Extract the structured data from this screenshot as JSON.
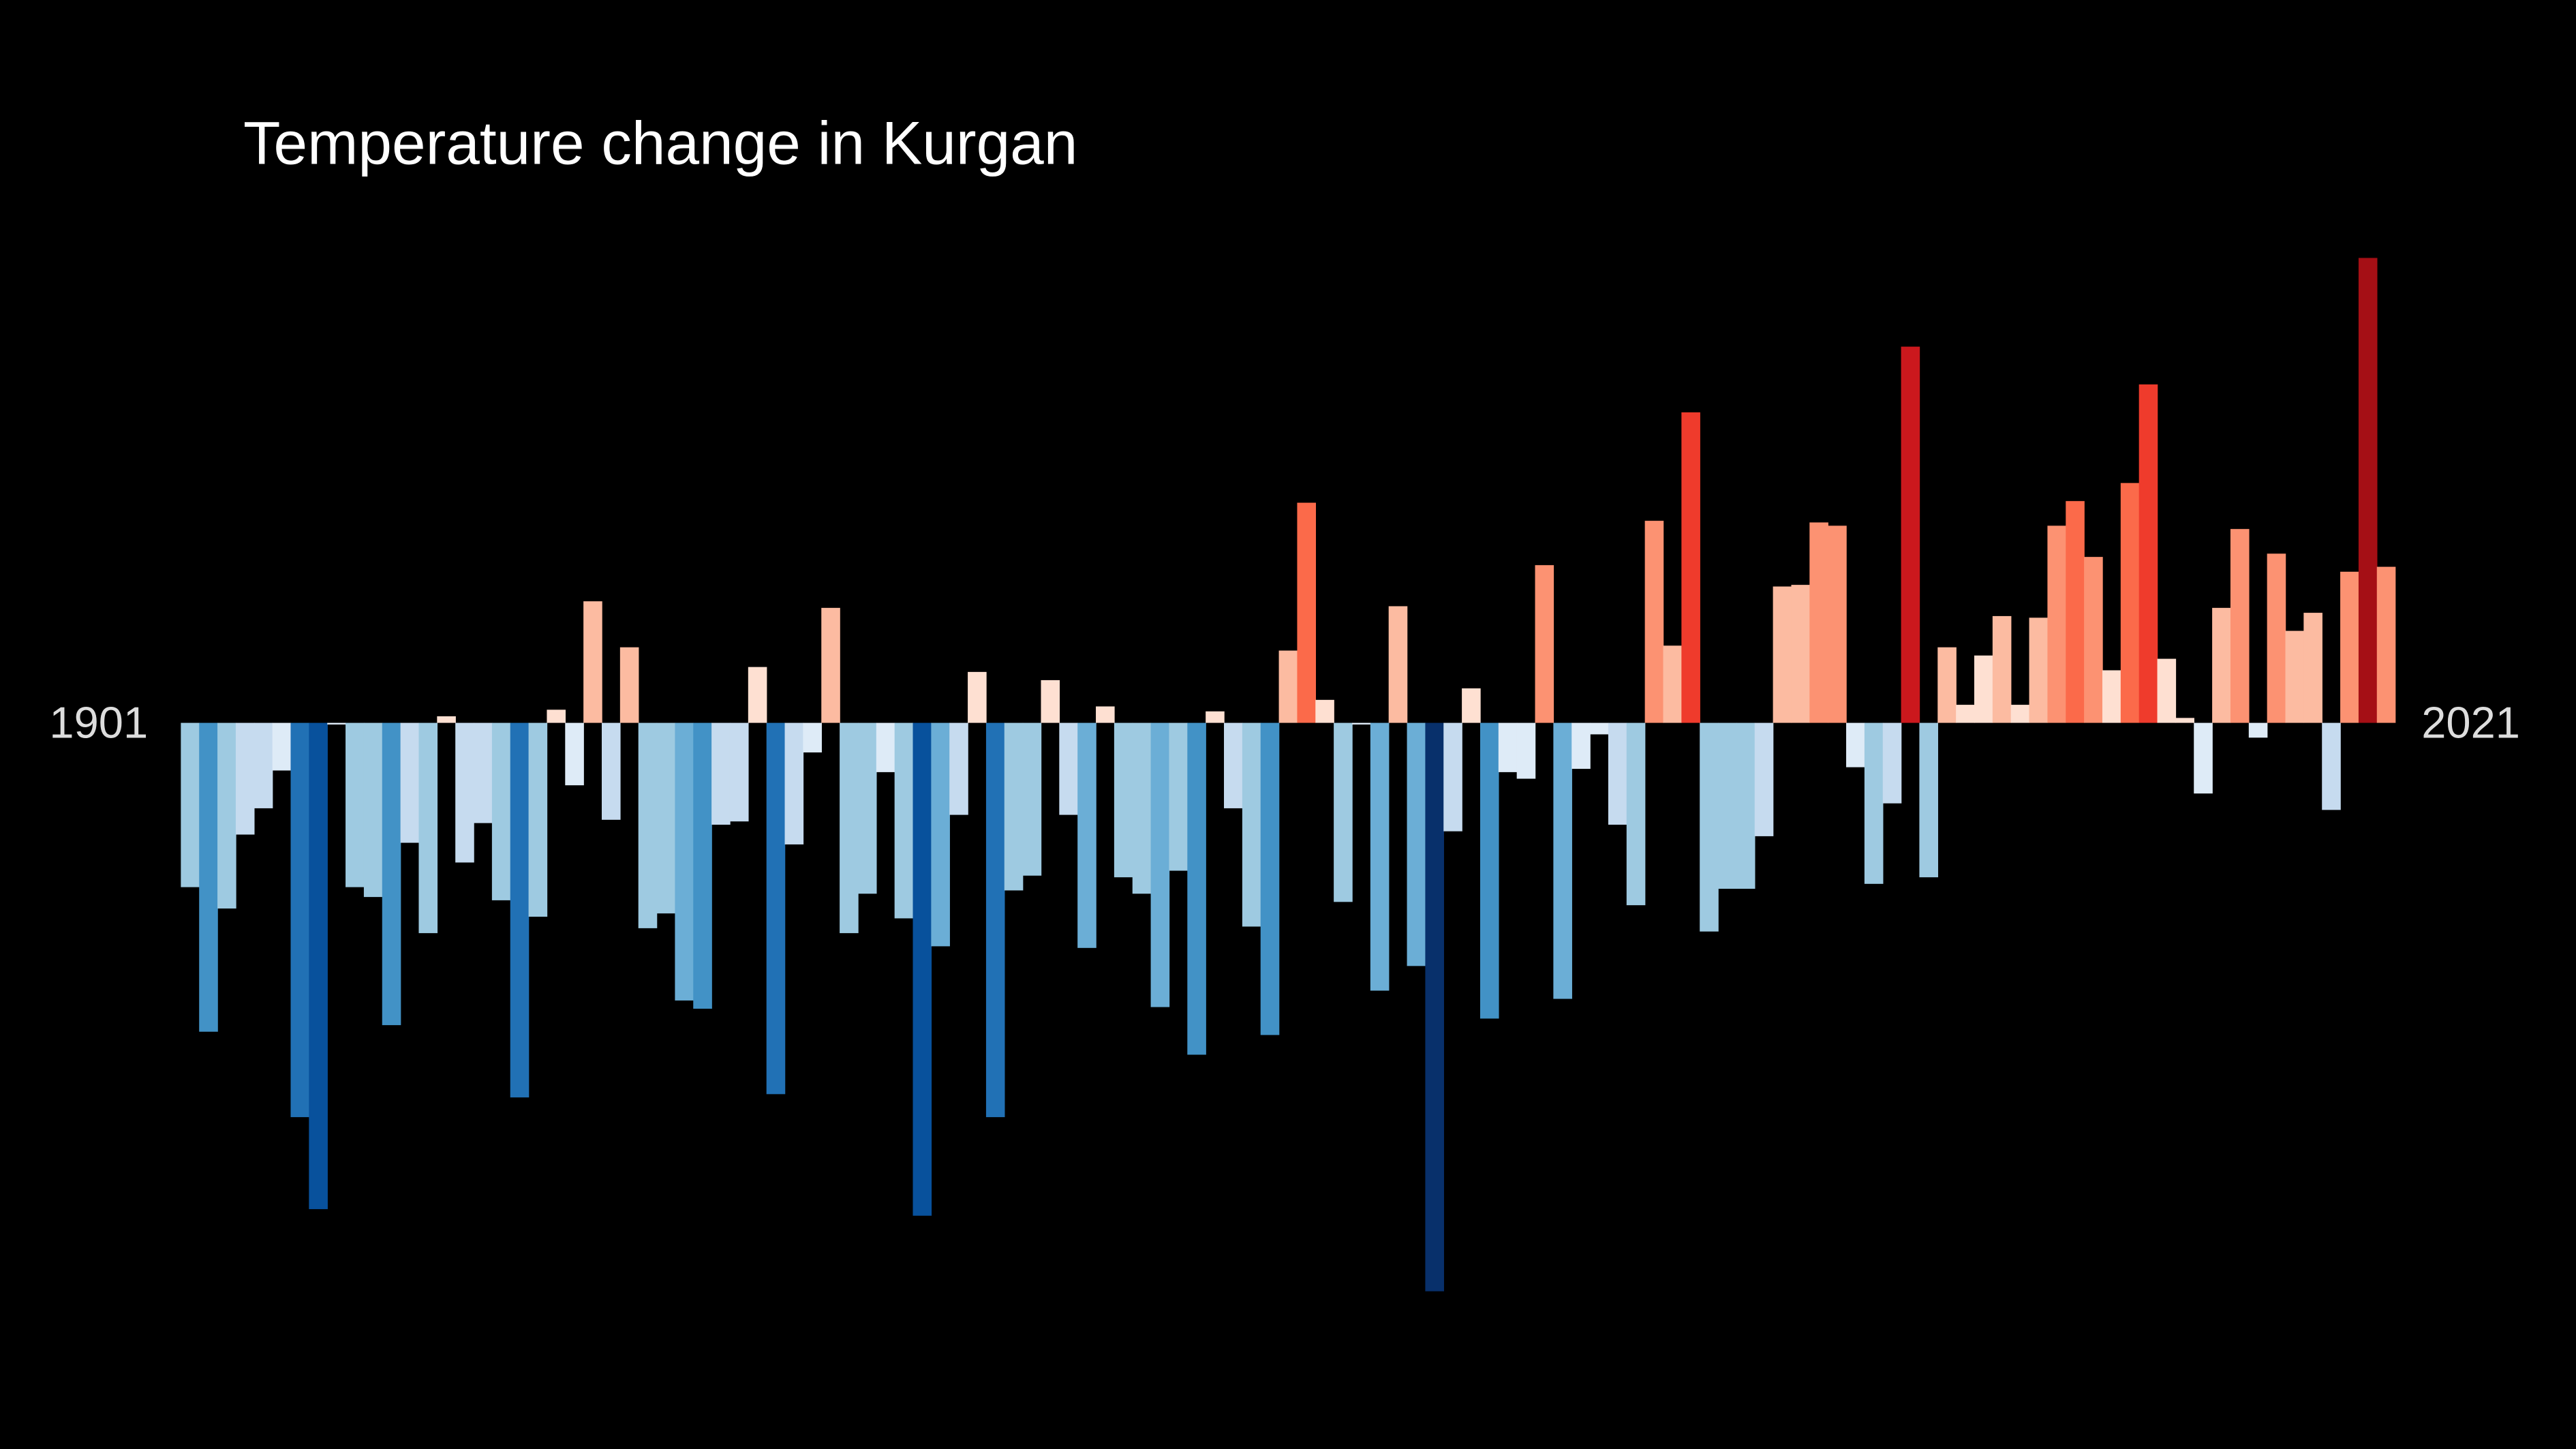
{
  "chart_data": {
    "type": "bar",
    "title": "Temperature change in Kurgan",
    "categories": [
      "1901",
      null,
      null,
      null,
      null,
      null,
      null,
      null,
      null,
      null,
      null,
      null,
      null,
      null,
      null,
      null,
      null,
      null,
      null,
      null,
      null,
      null,
      null,
      null,
      null,
      null,
      null,
      null,
      null,
      null,
      null,
      null,
      null,
      null,
      null,
      null,
      null,
      null,
      null,
      null,
      null,
      null,
      null,
      null,
      null,
      null,
      null,
      null,
      null,
      null,
      null,
      null,
      null,
      null,
      null,
      null,
      null,
      null,
      null,
      null,
      null,
      null,
      null,
      null,
      null,
      null,
      null,
      null,
      null,
      null,
      null,
      null,
      null,
      null,
      null,
      null,
      null,
      null,
      null,
      null,
      null,
      null,
      null,
      null,
      null,
      null,
      null,
      null,
      null,
      null,
      null,
      null,
      null,
      null,
      null,
      null,
      null,
      null,
      null,
      null,
      null,
      null,
      null,
      null,
      null,
      null,
      null,
      null,
      null,
      null,
      null,
      null,
      null,
      null,
      null,
      null,
      null,
      null,
      null,
      null,
      "2021"
    ],
    "values": [
      -1.0,
      -1.88,
      -1.13,
      -0.68,
      -0.52,
      -0.29,
      -2.4,
      -2.96,
      -0.01,
      -1.0,
      -1.06,
      -1.84,
      -0.73,
      -1.28,
      0.04,
      -0.85,
      -0.61,
      -1.08,
      -2.28,
      -1.18,
      0.08,
      -0.38,
      0.74,
      -0.59,
      0.46,
      -1.25,
      -1.16,
      -1.69,
      -1.74,
      -0.62,
      -0.6,
      0.34,
      -2.26,
      -0.74,
      -0.18,
      0.7,
      -1.28,
      -1.04,
      -0.3,
      -1.19,
      -3.0,
      -1.36,
      -0.56,
      0.31,
      -2.4,
      -1.02,
      -0.93,
      0.26,
      -0.56,
      -1.37,
      0.1,
      -0.94,
      -1.04,
      -1.73,
      -0.9,
      -2.02,
      0.07,
      -0.52,
      -1.24,
      -1.9,
      0.44,
      1.34,
      0.14,
      -1.09,
      -0.01,
      -1.63,
      0.71,
      -1.48,
      -3.46,
      -0.66,
      0.21,
      -1.8,
      -0.3,
      -0.34,
      0.96,
      -1.68,
      -0.28,
      -0.07,
      -0.62,
      -1.11,
      1.23,
      0.47,
      1.89,
      -1.27,
      -1.01,
      -1.01,
      -0.69,
      0.83,
      0.84,
      1.22,
      1.2,
      -0.27,
      -0.98,
      -0.49,
      2.29,
      -0.94,
      0.46,
      0.11,
      0.41,
      0.65,
      0.11,
      0.64,
      1.2,
      1.35,
      1.01,
      0.32,
      1.46,
      2.06,
      0.39,
      0.03,
      -0.43,
      0.7,
      1.18,
      -0.09,
      1.03,
      0.56,
      0.67,
      -0.53,
      0.92,
      2.83,
      0.95
    ],
    "colormap": [
      "#08306b",
      "#08519c",
      "#2171b5",
      "#4292c6",
      "#6baed6",
      "#9ecae1",
      "#c6dbef",
      "#deebf7",
      "#fee0d2",
      "#fcbba1",
      "#fc9272",
      "#fb6a4a",
      "#ef3b2c",
      "#cb181d",
      "#a50f15",
      "#67000d"
    ]
  }
}
